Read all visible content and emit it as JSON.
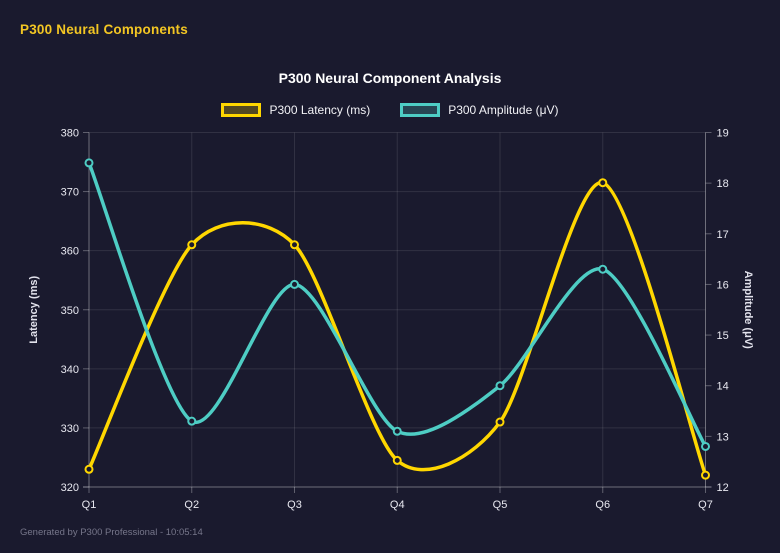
{
  "window": {
    "title": "P300 Neural Components"
  },
  "footer": {
    "text": "Generated by P300 Professional - 10:05:14"
  },
  "colors": {
    "background": "#1a1a2e",
    "header_text": "#f3c623",
    "title_text": "#ffffff",
    "tick_text": "#e8e8f0",
    "grid": "rgba(255,255,255,0.10)",
    "axis_border": "rgba(255,255,255,0.30)",
    "footer_text": "#76768a",
    "latency_series": "#ffd700",
    "amplitude_series": "#4ecdc4"
  },
  "chart_data": {
    "type": "line",
    "title": "P300 Neural Component Analysis",
    "categories": [
      "Q1",
      "Q2",
      "Q3",
      "Q4",
      "Q5",
      "Q6",
      "Q7"
    ],
    "series": [
      {
        "name": "P300 Latency (ms)",
        "axis": "left",
        "color": "#ffd700",
        "values": [
          323,
          361,
          361,
          324.5,
          331,
          371.5,
          322
        ]
      },
      {
        "name": "P300 Amplitude (μV)",
        "axis": "right",
        "color": "#4ecdc4",
        "values": [
          18.4,
          13.3,
          16.0,
          13.1,
          14.0,
          16.3,
          12.8
        ]
      }
    ],
    "axes": {
      "left": {
        "label": "Latency (ms)",
        "min": 320,
        "max": 380,
        "ticks": [
          320,
          330,
          340,
          350,
          360,
          370,
          380
        ]
      },
      "right": {
        "label": "Amplitude (μV)",
        "min": 12,
        "max": 19,
        "ticks": [
          12,
          13,
          14,
          15,
          16,
          17,
          18,
          19
        ]
      }
    },
    "legend_position": "top",
    "grid": true,
    "curve": "smooth",
    "curve_tension": 0.4
  }
}
